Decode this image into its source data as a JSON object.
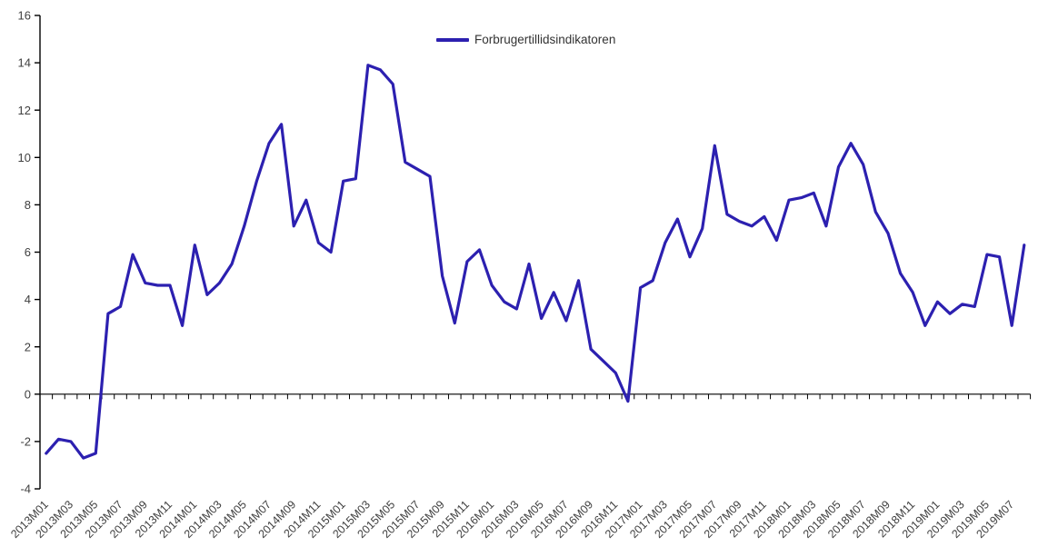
{
  "chart": {
    "legend_label": "Forbrugertillidsindikatoren"
  },
  "colors": {
    "series_line": "#2C20B0",
    "axis": "#000000",
    "tick_label_text": "#404040",
    "background": "#ffffff"
  },
  "chart_data": {
    "type": "line",
    "title": "",
    "xlabel": "",
    "ylabel": "",
    "grid": false,
    "legend_position": "top-center",
    "legend": [
      "Forbrugertillidsindikatoren"
    ],
    "ylim": [
      -4,
      16
    ],
    "yticks": [
      16,
      14,
      12,
      10,
      8,
      6,
      4,
      2,
      0,
      -2,
      -4
    ],
    "x_axis_note": "category axis drawn at y=0 with downward tick marks; labels shown for every 2nd month, rotated 45 degrees, placed below plot area",
    "x": [
      "2013M01",
      "2013M02",
      "2013M03",
      "2013M04",
      "2013M05",
      "2013M06",
      "2013M07",
      "2013M08",
      "2013M09",
      "2013M10",
      "2013M11",
      "2013M12",
      "2014M01",
      "2014M02",
      "2014M03",
      "2014M04",
      "2014M05",
      "2014M06",
      "2014M07",
      "2014M08",
      "2014M09",
      "2014M10",
      "2014M11",
      "2014M12",
      "2015M01",
      "2015M02",
      "2015M03",
      "2015M04",
      "2015M05",
      "2015M06",
      "2015M07",
      "2015M08",
      "2015M09",
      "2015M10",
      "2015M11",
      "2015M12",
      "2016M01",
      "2016M02",
      "2016M03",
      "2016M04",
      "2016M05",
      "2016M06",
      "2016M07",
      "2016M08",
      "2016M09",
      "2016M10",
      "2016M11",
      "2016M12",
      "2017M01",
      "2017M02",
      "2017M03",
      "2017M04",
      "2017M05",
      "2017M06",
      "2017M07",
      "2017M08",
      "2017M09",
      "2017M10",
      "2017M11",
      "2017M12",
      "2018M01",
      "2018M02",
      "2018M03",
      "2018M04",
      "2018M05",
      "2018M06",
      "2018M07",
      "2018M08",
      "2018M09",
      "2018M10",
      "2018M11",
      "2018M12",
      "2019M01",
      "2019M02",
      "2019M03",
      "2019M04",
      "2019M05",
      "2019M06",
      "2019M07",
      "2019M08"
    ],
    "xtick_labels_shown": [
      "2013M01",
      "2013M03",
      "2013M05",
      "2013M07",
      "2013M09",
      "2013M11",
      "2014M01",
      "2014M03",
      "2014M05",
      "2014M07",
      "2014M09",
      "2014M11",
      "2015M01",
      "2015M03",
      "2015M05",
      "2015M07",
      "2015M09",
      "2015M11",
      "2016M01",
      "2016M03",
      "2016M05",
      "2016M07",
      "2016M09",
      "2016M11",
      "2017M01",
      "2017M03",
      "2017M05",
      "2017M07",
      "2017M09",
      "2017M11",
      "2018M01",
      "2018M03",
      "2018M05",
      "2018M07",
      "2018M09",
      "2018M11",
      "2019M01",
      "2019M03",
      "2019M05",
      "2019M07"
    ],
    "series": [
      {
        "name": "Forbrugertillidsindikatoren",
        "color": "#2C20B0",
        "values": [
          -2.5,
          -1.9,
          -2.0,
          -2.7,
          -2.5,
          3.4,
          3.7,
          5.9,
          4.7,
          4.6,
          4.6,
          2.9,
          6.3,
          4.2,
          4.7,
          5.5,
          7.1,
          9.0,
          10.6,
          11.4,
          7.1,
          8.2,
          6.4,
          6.0,
          9.0,
          9.1,
          13.9,
          13.7,
          13.1,
          9.8,
          9.5,
          9.2,
          5.0,
          3.0,
          5.6,
          6.1,
          4.6,
          3.9,
          3.6,
          5.5,
          3.2,
          4.3,
          3.1,
          4.8,
          1.9,
          1.4,
          0.9,
          -0.3,
          4.5,
          4.8,
          6.4,
          7.4,
          5.8,
          7.0,
          10.5,
          7.6,
          7.3,
          7.1,
          7.5,
          6.5,
          8.2,
          8.3,
          8.5,
          7.1,
          9.6,
          10.6,
          9.7,
          7.7,
          6.8,
          5.1,
          4.3,
          2.9,
          3.9,
          3.4,
          3.8,
          3.7,
          5.9,
          5.8,
          2.9,
          6.3
        ]
      }
    ]
  }
}
